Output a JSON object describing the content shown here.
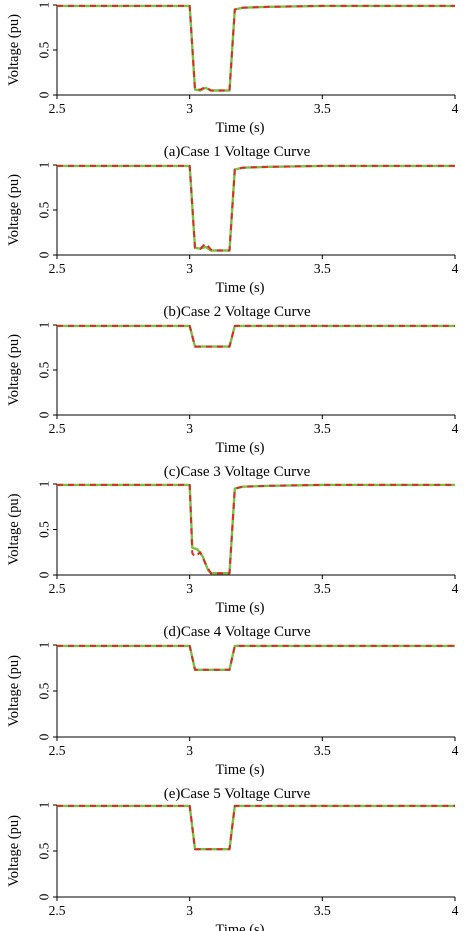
{
  "colors": {
    "green": "#7ac143",
    "red": "#d62b2b",
    "axis": "#000000"
  },
  "legend": null,
  "chart_data": [
    {
      "type": "line",
      "caption": "(a)Case 1 Voltage Curve",
      "xlabel": "Time (s)",
      "ylabel": "Voltage (pu)",
      "xlim": [
        2.5,
        4
      ],
      "ylim": [
        0,
        1
      ],
      "xticks": [
        "2.5",
        "3",
        "3.5",
        "4"
      ],
      "yticks": [
        "0",
        "0.5",
        "1"
      ],
      "grid": false,
      "series": [
        {
          "color": "#7ac143",
          "style": "solid",
          "x": [
            2.5,
            3.0,
            3.02,
            3.04,
            3.06,
            3.08,
            3.1,
            3.15,
            3.17,
            3.2,
            3.3,
            3.5,
            4.0
          ],
          "y": [
            0.99,
            0.99,
            0.06,
            0.05,
            0.08,
            0.05,
            0.05,
            0.05,
            0.95,
            0.97,
            0.98,
            0.99,
            0.99
          ]
        },
        {
          "color": "#d62b2b",
          "style": "dashed",
          "x": [
            2.5,
            3.0,
            3.02,
            3.04,
            3.06,
            3.08,
            3.1,
            3.15,
            3.17,
            3.2,
            3.3,
            3.5,
            4.0
          ],
          "y": [
            0.99,
            0.99,
            0.06,
            0.06,
            0.09,
            0.05,
            0.05,
            0.05,
            0.95,
            0.97,
            0.98,
            0.99,
            0.99
          ]
        }
      ]
    },
    {
      "type": "line",
      "caption": "(b)Case 2 Voltage Curve",
      "xlabel": "Time (s)",
      "ylabel": "Voltage (pu)",
      "xlim": [
        2.5,
        4
      ],
      "ylim": [
        0,
        1
      ],
      "xticks": [
        "2.5",
        "3",
        "3.5",
        "4"
      ],
      "yticks": [
        "0",
        "0.5",
        "1"
      ],
      "grid": false,
      "series": [
        {
          "color": "#7ac143",
          "style": "solid",
          "x": [
            2.5,
            3.0,
            3.02,
            3.04,
            3.06,
            3.08,
            3.1,
            3.15,
            3.17,
            3.2,
            3.3,
            3.5,
            4.0
          ],
          "y": [
            0.99,
            0.99,
            0.08,
            0.07,
            0.09,
            0.05,
            0.05,
            0.05,
            0.95,
            0.97,
            0.98,
            0.99,
            0.99
          ]
        },
        {
          "color": "#d62b2b",
          "style": "dashed",
          "x": [
            2.5,
            3.0,
            3.02,
            3.04,
            3.06,
            3.08,
            3.1,
            3.15,
            3.17,
            3.2,
            3.3,
            3.5,
            4.0
          ],
          "y": [
            0.99,
            0.99,
            0.08,
            0.07,
            0.13,
            0.06,
            0.05,
            0.05,
            0.95,
            0.97,
            0.98,
            0.99,
            0.99
          ]
        }
      ]
    },
    {
      "type": "line",
      "caption": "(c)Case 3 Voltage Curve",
      "xlabel": "Time (s)",
      "ylabel": "Voltage (pu)",
      "xlim": [
        2.5,
        4
      ],
      "ylim": [
        0,
        1
      ],
      "xticks": [
        "2.5",
        "3",
        "3.5",
        "4"
      ],
      "yticks": [
        "0",
        "0.5",
        "1"
      ],
      "grid": false,
      "series": [
        {
          "color": "#7ac143",
          "style": "solid",
          "x": [
            2.5,
            3.0,
            3.02,
            3.15,
            3.17,
            4.0
          ],
          "y": [
            0.99,
            0.99,
            0.76,
            0.76,
            0.99,
            0.99
          ]
        },
        {
          "color": "#d62b2b",
          "style": "dashed",
          "x": [
            2.5,
            3.0,
            3.02,
            3.15,
            3.17,
            4.0
          ],
          "y": [
            0.99,
            0.99,
            0.76,
            0.76,
            0.99,
            0.99
          ]
        }
      ]
    },
    {
      "type": "line",
      "caption": "(d)Case 4 Voltage Curve",
      "xlabel": "Time (s)",
      "ylabel": "Voltage (pu)",
      "xlim": [
        2.5,
        4
      ],
      "ylim": [
        0,
        1
      ],
      "xticks": [
        "2.5",
        "3",
        "3.5",
        "4"
      ],
      "yticks": [
        "0",
        "0.5",
        "1"
      ],
      "grid": false,
      "series": [
        {
          "color": "#7ac143",
          "style": "solid",
          "x": [
            2.5,
            3.0,
            3.01,
            3.03,
            3.05,
            3.07,
            3.08,
            3.15,
            3.17,
            3.2,
            3.3,
            3.5,
            4.0
          ],
          "y": [
            0.99,
            0.99,
            0.3,
            0.28,
            0.2,
            0.05,
            0.02,
            0.02,
            0.95,
            0.97,
            0.98,
            0.99,
            0.99
          ]
        },
        {
          "color": "#d62b2b",
          "style": "dashed",
          "x": [
            2.5,
            3.0,
            3.01,
            3.02,
            3.04,
            3.06,
            3.08,
            3.15,
            3.17,
            3.2,
            3.3,
            3.5,
            4.0
          ],
          "y": [
            0.99,
            0.99,
            0.24,
            0.2,
            0.25,
            0.12,
            0.02,
            0.02,
            0.95,
            0.97,
            0.98,
            0.99,
            0.99
          ]
        }
      ]
    },
    {
      "type": "line",
      "caption": "(e)Case 5 Voltage Curve",
      "xlabel": "Time (s)",
      "ylabel": "Voltage (pu)",
      "xlim": [
        2.5,
        4
      ],
      "ylim": [
        0,
        1
      ],
      "xticks": [
        "2.5",
        "3",
        "3.5",
        "4"
      ],
      "yticks": [
        "0",
        "0.5",
        "1"
      ],
      "grid": false,
      "series": [
        {
          "color": "#7ac143",
          "style": "solid",
          "x": [
            2.5,
            3.0,
            3.02,
            3.15,
            3.17,
            4.0
          ],
          "y": [
            0.99,
            0.99,
            0.73,
            0.73,
            0.99,
            0.99
          ]
        },
        {
          "color": "#d62b2b",
          "style": "dashed",
          "x": [
            2.5,
            3.0,
            3.02,
            3.15,
            3.17,
            4.0
          ],
          "y": [
            0.99,
            0.99,
            0.73,
            0.73,
            0.99,
            0.99
          ]
        }
      ]
    },
    {
      "type": "line",
      "caption": "",
      "xlabel": "Time (s)",
      "ylabel": "Voltage (pu)",
      "xlim": [
        2.5,
        4
      ],
      "ylim": [
        0,
        1
      ],
      "xticks": [
        "2.5",
        "3",
        "3.5",
        "4"
      ],
      "yticks": [
        "0",
        "0.5",
        "1"
      ],
      "grid": false,
      "series": [
        {
          "color": "#7ac143",
          "style": "solid",
          "x": [
            2.5,
            3.0,
            3.02,
            3.15,
            3.17,
            4.0
          ],
          "y": [
            0.99,
            0.99,
            0.52,
            0.52,
            0.99,
            0.99
          ]
        },
        {
          "color": "#d62b2b",
          "style": "dashed",
          "x": [
            2.5,
            3.0,
            3.02,
            3.15,
            3.17,
            4.0
          ],
          "y": [
            0.99,
            0.99,
            0.52,
            0.52,
            0.99,
            0.99
          ]
        }
      ]
    }
  ]
}
